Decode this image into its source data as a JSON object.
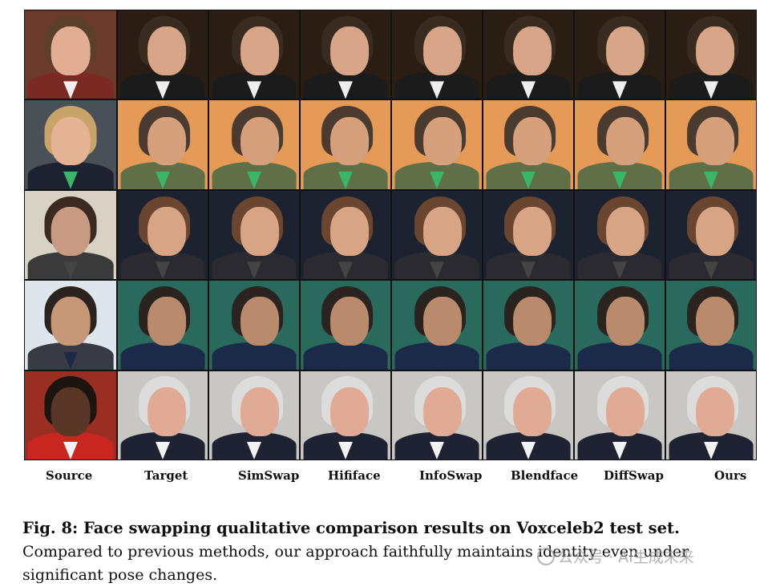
{
  "figure": {
    "columns": [
      "Source",
      "Target",
      "SimSwap",
      "Hififace",
      "InfoSwap",
      "Blendface",
      "DiffSwap",
      "Ours"
    ],
    "rows": [
      {
        "bg": "#2a1e14",
        "source_bg": "#6b3a2a",
        "skin": "#d9a588",
        "src_skin": "#e2ad92",
        "hair": "#3a2b20",
        "src_hair": "#5a3f2a",
        "body": "#1b1b1b",
        "src_body": "#7a2a22",
        "collar": "#eeeeee"
      },
      {
        "bg": "#e69a58",
        "source_bg": "#4a5058",
        "skin": "#d6a07c",
        "src_skin": "#e3b393",
        "hair": "#4a3a30",
        "src_hair": "#c8a46a",
        "body": "#5f7048",
        "src_body": "#1e2230",
        "collar": "#3bb56a"
      },
      {
        "bg": "#1c2230",
        "source_bg": "#d8d2c4",
        "skin": "#d8a486",
        "src_skin": "#c99a82",
        "hair": "#6a4630",
        "src_hair": "#3b2a22",
        "body": "#2a2a30",
        "src_body": "#3a3a3a",
        "collar": "#444444"
      },
      {
        "bg": "#2a6a5c",
        "source_bg": "#dce6ec",
        "skin": "#b98a6c",
        "src_skin": "#c69878",
        "hair": "#2a2320",
        "src_hair": "#2a2320",
        "body": "#1a2a48",
        "src_body": "#3a3a44",
        "collar": "#1a2a48"
      },
      {
        "bg": "#c9c7c4",
        "source_bg": "#9a2e22",
        "skin": "#e0aa94",
        "src_skin": "#5a3626",
        "hair": "#dcdcdc",
        "src_hair": "#1c140e",
        "body": "#1e2232",
        "src_body": "#c8261e",
        "collar": "#f2f2f2"
      }
    ]
  },
  "caption": {
    "head": "Fig. 8: Face swapping qualitative comparison results on Voxceleb2 test set.",
    "body": "Compared to previous methods, our approach faithfully maintains identity even under significant pose changes."
  },
  "watermark": "公众号 · AI生成未来"
}
